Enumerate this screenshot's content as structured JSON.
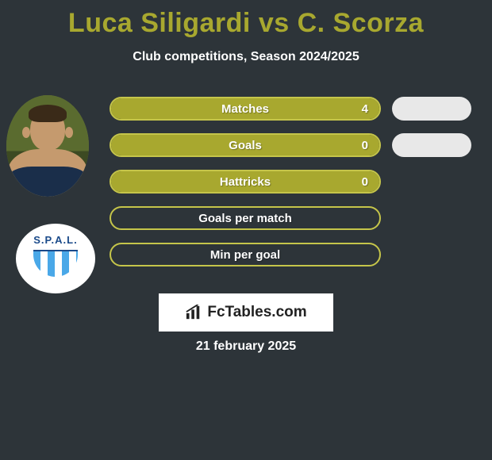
{
  "title_player1": "Luca Siligardi",
  "title_vs": "vs",
  "title_player2": "C. Scorza",
  "title_color": "#a8a82f",
  "subtitle": "Club competitions, Season 2024/2025",
  "date": "21 february 2025",
  "bar_fill_color": "#a8a82f",
  "bar_border_color": "#c5c54a",
  "pill_color": "#e8e8e8",
  "stats": [
    {
      "label": "Matches",
      "value": "4",
      "fill_percent": 100,
      "show_right_pill": true
    },
    {
      "label": "Goals",
      "value": "0",
      "fill_percent": 100,
      "show_right_pill": true
    },
    {
      "label": "Hattricks",
      "value": "0",
      "fill_percent": 100,
      "show_right_pill": false
    },
    {
      "label": "Goals per match",
      "value": "",
      "fill_percent": 0,
      "show_right_pill": false
    },
    {
      "label": "Min per goal",
      "value": "",
      "fill_percent": 0,
      "show_right_pill": false
    }
  ],
  "club_badge_text": "S.P.A.L.",
  "logo_text": "FcTables.com",
  "background_color": "#2d3439"
}
